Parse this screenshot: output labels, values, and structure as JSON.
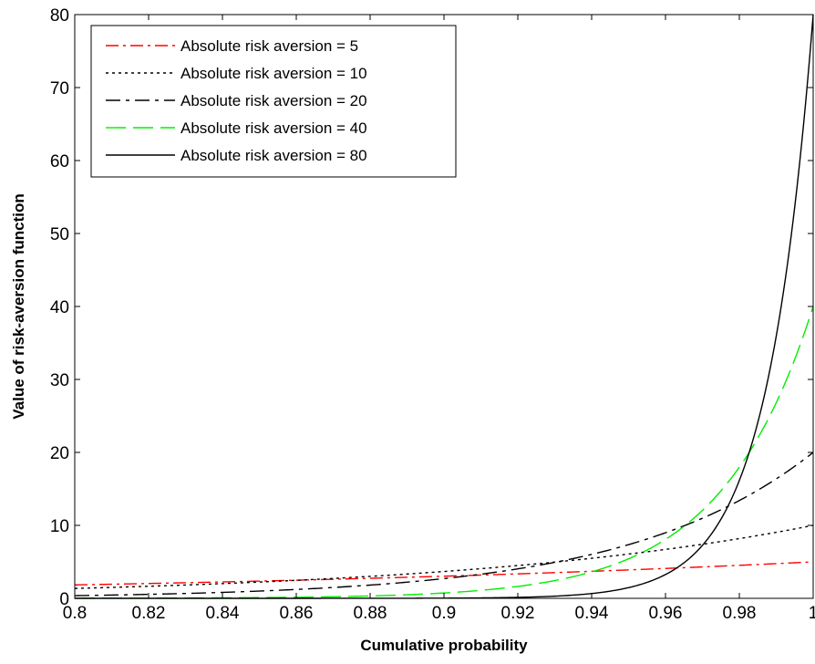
{
  "chart_data": {
    "type": "line",
    "title": "",
    "xlabel": "Cumulative probability",
    "ylabel": "Value of risk-aversion function",
    "xlim": [
      0.8,
      1.0
    ],
    "ylim": [
      0,
      80
    ],
    "xticks": [
      "0.8",
      "0.82",
      "0.84",
      "0.86",
      "0.88",
      "0.9",
      "0.92",
      "0.94",
      "0.96",
      "0.98",
      "1"
    ],
    "yticks": [
      "0",
      "10",
      "20",
      "30",
      "40",
      "50",
      "60",
      "70",
      "80"
    ],
    "grid": false,
    "legend_position": "top-left",
    "series": [
      {
        "name": "Absolute risk aversion = 5",
        "a": 5,
        "color": "#ff0000",
        "style": "dash-dot",
        "x": [
          0.8,
          0.82,
          0.84,
          0.86,
          0.88,
          0.9,
          0.92,
          0.94,
          0.96,
          0.98,
          1.0
        ],
        "values": [
          1.84,
          2.03,
          2.24,
          2.48,
          2.74,
          3.03,
          3.35,
          3.7,
          4.09,
          4.52,
          5.0
        ]
      },
      {
        "name": "Absolute risk aversion = 10",
        "a": 10,
        "color": "#000000",
        "style": "dotted",
        "x": [
          0.8,
          0.82,
          0.84,
          0.86,
          0.88,
          0.9,
          0.92,
          0.94,
          0.96,
          0.98,
          1.0
        ],
        "values": [
          1.35,
          1.65,
          2.02,
          2.47,
          3.01,
          3.68,
          4.49,
          5.49,
          6.7,
          8.19,
          10.0
        ]
      },
      {
        "name": "Absolute risk aversion = 20",
        "a": 20,
        "color": "#000000",
        "style": "long-dash-dot",
        "x": [
          0.8,
          0.82,
          0.84,
          0.86,
          0.88,
          0.9,
          0.92,
          0.94,
          0.96,
          0.98,
          1.0
        ],
        "values": [
          0.37,
          0.55,
          0.82,
          1.22,
          1.81,
          2.71,
          4.04,
          6.02,
          8.99,
          13.41,
          20.0
        ]
      },
      {
        "name": "Absolute risk aversion = 40",
        "a": 40,
        "color": "#00ee00",
        "style": "long-dash",
        "x": [
          0.8,
          0.82,
          0.84,
          0.86,
          0.88,
          0.9,
          0.92,
          0.94,
          0.96,
          0.98,
          1.0
        ],
        "values": [
          0.01,
          0.03,
          0.07,
          0.15,
          0.33,
          0.73,
          1.63,
          3.63,
          8.08,
          17.97,
          40.0
        ]
      },
      {
        "name": "Absolute risk aversion = 80",
        "a": 80,
        "color": "#000000",
        "style": "solid",
        "x": [
          0.8,
          0.82,
          0.84,
          0.86,
          0.88,
          0.9,
          0.92,
          0.94,
          0.96,
          0.98,
          1.0
        ],
        "values": [
          0.0,
          0.0,
          0.0,
          0.0,
          0.0,
          0.03,
          0.13,
          0.66,
          3.26,
          16.15,
          80.0
        ]
      }
    ]
  }
}
